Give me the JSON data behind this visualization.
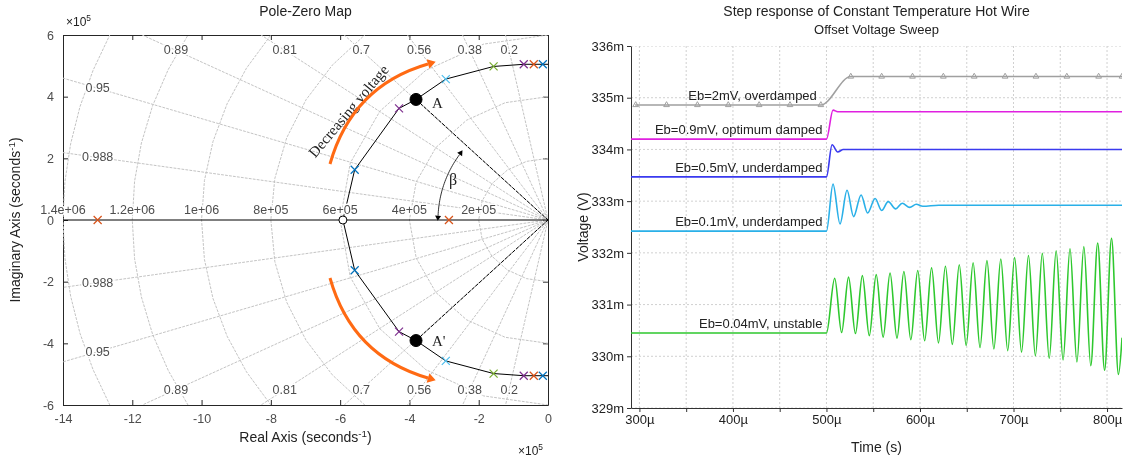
{
  "chart_data": [
    {
      "type": "scatter",
      "title": "Pole-Zero Map",
      "xlabel": "Real Axis (seconds$^{-1}$)",
      "ylabel": "Imaginary Axis (seconds$^{-1}$)",
      "xlim": [
        -14,
        0
      ],
      "ylim": [
        -6,
        6
      ],
      "xticks": [
        -14,
        -12,
        -10,
        -8,
        -6,
        -4,
        -2,
        0
      ],
      "yticks": [
        -6,
        -4,
        -2,
        0,
        2,
        4,
        6
      ],
      "annotations": [
        "0.89",
        "0.81",
        "0.7",
        "0.56",
        "0.38",
        "0.2",
        "0.95",
        "0.988",
        "0.988",
        "0.95",
        "0.89",
        "0.81",
        "0.7",
        "0.56",
        "0.38",
        "0.2",
        "1.4e+06",
        "1.2e+06",
        "1e+06",
        "8e+05",
        "6e+05",
        "4e+05",
        "2e+05",
        {
          "text": "Decreasing voltage",
          "x": -4.3,
          "y": 3.62
        },
        "A",
        "A'",
        "β",
        "×10$^{5}$",
        "×10$^{5}$"
      ],
      "series": [
        {
          "type": "line",
          "color": "#c4c4c4",
          "line_style": "dotted",
          "x": [
            -1.225,
            0,
            -1.225
          ],
          "values": [
            6,
            0,
            -6
          ]
        },
        {
          "type": "line",
          "color": "#c4c4c4",
          "line_style": "dotted",
          "x": [
            -2.466,
            0,
            -2.466
          ],
          "values": [
            6,
            0,
            -6
          ]
        },
        {
          "type": "line",
          "color": "#c4c4c4",
          "line_style": "dotted",
          "x": [
            -4.057,
            0,
            -4.057
          ],
          "values": [
            6,
            0,
            -6
          ]
        },
        {
          "type": "line",
          "color": "#c4c4c4",
          "line_style": "dotted",
          "x": [
            -5.881,
            0,
            -5.881
          ],
          "values": [
            6,
            0,
            -6
          ]
        },
        {
          "type": "line",
          "color": "#c4c4c4",
          "line_style": "dotted",
          "x": [
            -8.284,
            0,
            -8.284
          ],
          "values": [
            6,
            0,
            -6
          ]
        },
        {
          "type": "line",
          "color": "#c4c4c4",
          "line_style": "dotted",
          "x": [
            -11.712,
            0,
            -11.712
          ],
          "values": [
            6,
            0,
            -6
          ]
        },
        {
          "type": "line",
          "color": "#c4c4c4",
          "line_style": "dotted",
          "x": [
            -14,
            0,
            -14
          ],
          "values": [
            4.602,
            0,
            -4.602
          ]
        },
        {
          "type": "line",
          "color": "#c4c4c4",
          "line_style": "dotted",
          "x": [
            -14,
            0,
            -14
          ],
          "values": [
            2.185,
            0,
            -2.185
          ]
        },
        {
          "type": "line",
          "color": "#c4c4c4",
          "line_style": "dotted",
          "x": [
            0,
            -0.618,
            -1.176,
            -1.618,
            -1.902,
            -2,
            -1.902,
            -1.618,
            -1.176,
            -0.618,
            0
          ],
          "values": [
            -2,
            -1.902,
            -1.618,
            -1.176,
            -0.618,
            0,
            0.618,
            1.176,
            1.618,
            1.902,
            2
          ]
        },
        {
          "type": "line",
          "color": "#c4c4c4",
          "line_style": "dotted",
          "x": [
            0,
            -1.236,
            -2.351,
            -3.236,
            -3.804,
            -4,
            -3.804,
            -3.236,
            -2.351,
            -1.236,
            0
          ],
          "values": [
            -4,
            -3.804,
            -3.236,
            -2.351,
            -1.236,
            0,
            1.236,
            2.351,
            3.236,
            3.804,
            4
          ]
        },
        {
          "type": "line",
          "color": "#c4c4c4",
          "line_style": "dotted",
          "x": [
            0,
            -1.854,
            -3.527,
            -4.854,
            -5.706,
            -6,
            -5.706,
            -4.854,
            -3.527,
            -1.854,
            0
          ],
          "values": [
            -6,
            -5.706,
            -4.854,
            -3.527,
            -1.854,
            0,
            1.854,
            3.527,
            4.854,
            5.706,
            6
          ]
        },
        {
          "type": "line",
          "color": "#c4c4c4",
          "line_style": "dotted",
          "x": [
            -5.291,
            -6.228,
            -6.986,
            -7.544,
            -7.885,
            -8,
            -7.885,
            -7.544,
            -6.986,
            -6.228,
            -5.291
          ],
          "values": [
            -6,
            -5.02,
            -3.897,
            -2.662,
            -1.35,
            0,
            1.35,
            2.662,
            3.897,
            5.02,
            6
          ]
        },
        {
          "type": "line",
          "color": "#c4c4c4",
          "line_style": "dotted",
          "x": [
            -8,
            -8.704,
            -9.264,
            -9.67,
            -9.917,
            -10,
            -9.917,
            -9.67,
            -9.264,
            -8.704,
            -8
          ],
          "values": [
            -6,
            -4.924,
            -3.766,
            -2.546,
            -1.283,
            0,
            1.283,
            2.546,
            3.766,
            4.924,
            6
          ]
        },
        {
          "type": "line",
          "color": "#c4c4c4",
          "line_style": "dotted",
          "x": [
            -10.392,
            -10.962,
            -11.413,
            -11.737,
            -11.934,
            -12,
            -11.934,
            -11.737,
            -11.413,
            -10.962,
            -10.392
          ],
          "values": [
            -6,
            -4.88,
            -3.708,
            -2.495,
            -1.254,
            0,
            1.254,
            2.495,
            3.708,
            4.88,
            6
          ]
        },
        {
          "type": "line",
          "color": "#c4c4c4",
          "line_style": "dotted",
          "x": [
            -12.649,
            -13.131,
            -13.509,
            -13.78,
            -13.945,
            -14,
            -13.945,
            -13.78,
            -13.509,
            -13.131,
            -12.649
          ],
          "values": [
            -6,
            -4.857,
            -3.678,
            -2.467,
            -1.239,
            0,
            1.239,
            2.467,
            3.678,
            4.857,
            6
          ]
        },
        {
          "type": "line",
          "color": "#000000",
          "x": [
            -14,
            0
          ],
          "values": [
            0,
            0
          ]
        },
        {
          "type": "line",
          "color": "#000000",
          "x": [
            -5.92,
            -5.58,
            -4.3,
            -3.81,
            -2.95,
            -1.57,
            -0.7,
            -0.41,
            -0.15,
            0
          ],
          "values": [
            0,
            1.63,
            3.62,
            3.91,
            4.57,
            4.98,
            5.05,
            5.05,
            5.05,
            5.05
          ]
        },
        {
          "type": "line",
          "color": "#000000",
          "x": [
            -5.92,
            -5.58,
            -4.3,
            -3.81,
            -2.95,
            -1.57,
            -0.7,
            -0.41,
            -0.15,
            0
          ],
          "values": [
            0,
            -1.63,
            -3.62,
            -3.91,
            -4.57,
            -4.98,
            -5.05,
            -5.05,
            -5.05,
            -5.05
          ]
        },
        {
          "type": "line",
          "color": "#000000",
          "line_style": "dashed",
          "x": [
            0,
            -3.81
          ],
          "values": [
            0,
            3.91
          ]
        },
        {
          "type": "line",
          "color": "#000000",
          "line_style": "dashed",
          "x": [
            0,
            -3.81
          ],
          "values": [
            0,
            -3.91
          ]
        },
        {
          "type": "scatter",
          "marker": "cross",
          "color": "#0072bd",
          "x": [
            -5.58,
            -5.58,
            -0.15,
            -0.15
          ],
          "values": [
            1.63,
            -1.63,
            5.05,
            -5.05
          ]
        },
        {
          "type": "scatter",
          "marker": "cross",
          "color": "#4dbeee",
          "x": [
            -2.95,
            -2.95
          ],
          "values": [
            4.57,
            -4.57
          ]
        },
        {
          "type": "scatter",
          "marker": "cross",
          "color": "#d95319",
          "x": [
            -13,
            -2.86,
            -0.41,
            -0.41
          ],
          "values": [
            0,
            0,
            5.05,
            -5.05
          ]
        },
        {
          "type": "scatter",
          "marker": "cross",
          "color": "#7e2f8e",
          "x": [
            -4.3,
            -4.3,
            -0.7,
            -0.7
          ],
          "values": [
            3.62,
            -3.62,
            5.05,
            -5.05
          ]
        },
        {
          "type": "scatter",
          "marker": "cross",
          "color": "#77ac30",
          "x": [
            -1.57,
            -1.57
          ],
          "values": [
            4.98,
            -4.98
          ]
        },
        {
          "type": "scatter",
          "marker": "circle",
          "color": "#ffffff",
          "x": [
            -5.92
          ],
          "values": [
            0
          ]
        },
        {
          "type": "scatter",
          "marker": "circle",
          "color": "#000000",
          "x": [
            -3.81,
            -3.81
          ],
          "values": [
            3.91,
            -3.91
          ]
        }
      ]
    },
    {
      "type": "line",
      "title": "Step response of Constant Temperature Hot Wire",
      "subtitle": "Offset Voltage Sweep",
      "xlabel": "Time (s)",
      "ylabel": "Voltage (V)",
      "xlim": [
        291,
        816
      ],
      "ylim": [
        329,
        336
      ],
      "xticks": [
        {
          "value": 300,
          "label": "300µ"
        },
        {
          "value": 350,
          "label": null
        },
        {
          "value": 400,
          "label": "400µ"
        },
        {
          "value": 450,
          "label": null
        },
        {
          "value": 500,
          "label": "500µ"
        },
        {
          "value": 550,
          "label": null
        },
        {
          "value": 600,
          "label": "600µ"
        },
        {
          "value": 650,
          "label": null
        },
        {
          "value": 700,
          "label": "700µ"
        },
        {
          "value": 750,
          "label": null
        },
        {
          "value": 800,
          "label": "800µ"
        }
      ],
      "yticks": [
        {
          "value": 329,
          "label": "329m"
        },
        {
          "value": 330,
          "label": "330m"
        },
        {
          "value": 331,
          "label": "331m"
        },
        {
          "value": 332,
          "label": "332m"
        },
        {
          "value": 333,
          "label": "333m"
        },
        {
          "value": 334,
          "label": "334m"
        },
        {
          "value": 335,
          "label": "335m"
        },
        {
          "value": 336,
          "label": "336m"
        }
      ],
      "grid": true,
      "series": [
        {
          "name": "Eb=2mV, overdamped",
          "color": "#a0a0a0",
          "marker": "triangle",
          "x": [
            296,
            329,
            362,
            395,
            428,
            461,
            494,
            526,
            559,
            592,
            625,
            658,
            691,
            724,
            757,
            791,
            816
          ],
          "values": [
            334.86,
            334.86,
            334.86,
            334.86,
            334.86,
            334.86,
            334.86,
            335.41,
            335.41,
            335.41,
            335.41,
            335.41,
            335.41,
            335.41,
            335.41,
            335.41,
            335.41
          ]
        },
        {
          "name": "Eb=0.9mV, optimum damped",
          "color": "#e020e0",
          "x": [
            291,
            500,
            507,
            512,
            816
          ],
          "values": [
            334.2,
            334.2,
            334.76,
            334.73,
            334.73
          ]
        },
        {
          "name": "Eb=0.5mV, underdamped",
          "color": "#3a3aef",
          "x": [
            291,
            500,
            506,
            512,
            518,
            816
          ],
          "values": [
            333.47,
            333.47,
            334.09,
            333.95,
            334,
            334
          ]
        },
        {
          "name": "Eb=0.1mV, underdamped",
          "color": "#2ab0e8",
          "x": [
            291,
            500,
            507,
            514.5,
            522,
            529,
            537,
            544,
            552,
            559,
            566,
            574,
            581,
            589,
            596,
            603,
            620,
            816
          ],
          "values": [
            332.42,
            332.42,
            333.33,
            332.56,
            333.21,
            332.7,
            333.12,
            332.77,
            333.05,
            332.82,
            332.99,
            332.85,
            332.96,
            332.88,
            332.94,
            332.9,
            332.92,
            332.92
          ]
        },
        {
          "name": "Eb=0.04mV, unstable",
          "color": "#2ec82e",
          "x": [
            291,
            500,
            508.8,
            516.2,
            523.6,
            531,
            538.4,
            545.8,
            553.2,
            560.6,
            568,
            575.4,
            582.8,
            590.2,
            597.6,
            605,
            612.4,
            619.8,
            627.2,
            634.6,
            642,
            649.4,
            656.8,
            664.2,
            671.6,
            679,
            686.4,
            693.8,
            701.2,
            708.6,
            716,
            723.4,
            730.8,
            738.2,
            745.6,
            753,
            760.4,
            767.8,
            775.2,
            782.6,
            790,
            797.4,
            804.8,
            812.2,
            816
          ],
          "values": [
            330.45,
            330.45,
            331.51,
            330.46,
            331.53,
            330.44,
            331.56,
            330.4,
            331.58,
            330.37,
            331.61,
            330.35,
            331.64,
            330.32,
            331.66,
            330.3,
            331.71,
            330.26,
            331.74,
            330.23,
            331.77,
            330.21,
            331.81,
            330.17,
            331.85,
            330.14,
            331.88,
            330.11,
            331.91,
            330.08,
            331.95,
            330.01,
            331.99,
            329.96,
            332.04,
            329.93,
            332.08,
            329.89,
            332.12,
            329.82,
            332.19,
            329.73,
            332.28,
            329.65,
            330.35
          ]
        }
      ]
    }
  ]
}
